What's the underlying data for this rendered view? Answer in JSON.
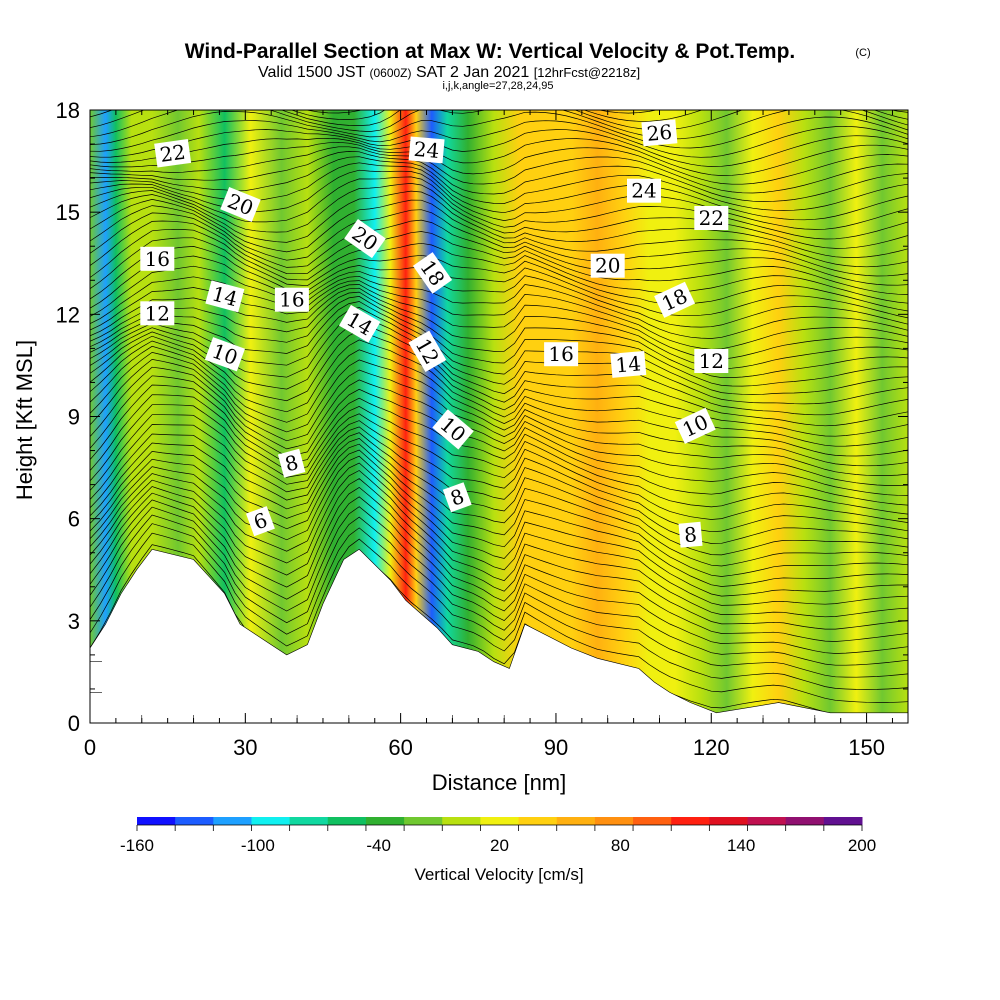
{
  "title": {
    "main": "Wind-Parallel Section at Max W: Vertical Velocity & Pot.Temp.",
    "copyright": "(C)",
    "valid_pre": "Valid 1500 JST",
    "valid_utc": "(0600Z)",
    "valid_date": "SAT 2 Jan 2021",
    "forecast": "[12hrFcst@2218z]",
    "indices": "i,j,k,angle=27,28,24,95"
  },
  "chart_data": {
    "type": "heatmap",
    "xlabel": "Distance [nm]",
    "ylabel": "Height [Kft MSL]",
    "xlim": [
      0,
      158
    ],
    "ylim": [
      0,
      18
    ],
    "x_ticks": [
      "0",
      "30",
      "60",
      "90",
      "120",
      "150"
    ],
    "y_ticks": [
      "0",
      "3",
      "6",
      "9",
      "12",
      "15",
      "18"
    ],
    "colorbar": {
      "label": "Vertical Velocity [cm/s]",
      "tick_labels": [
        "-160",
        "-100",
        "-40",
        "20",
        "80",
        "140",
        "200"
      ],
      "range": [
        -160,
        200
      ],
      "step": 20,
      "colors": [
        "#1010ff",
        "#1c5cff",
        "#1ea0ff",
        "#10f0f0",
        "#10d8a0",
        "#10c060",
        "#30b030",
        "#70c830",
        "#b8e010",
        "#f0f010",
        "#ffd010",
        "#ffb010",
        "#ff9010",
        "#ff6010",
        "#ff2010",
        "#e01020",
        "#c01050",
        "#901070",
        "#601090"
      ]
    },
    "velocity_bands": [
      {
        "x": 0,
        "w": -20
      },
      {
        "x": 3,
        "w": -120
      },
      {
        "x": 5,
        "w": -60
      },
      {
        "x": 8,
        "w": 0
      },
      {
        "x": 12,
        "w": 10
      },
      {
        "x": 17,
        "w": -20
      },
      {
        "x": 21,
        "w": 10
      },
      {
        "x": 26,
        "w": -50
      },
      {
        "x": 31,
        "w": 20
      },
      {
        "x": 37,
        "w": -10
      },
      {
        "x": 42,
        "w": 10
      },
      {
        "x": 47,
        "w": -30
      },
      {
        "x": 51,
        "w": -40
      },
      {
        "x": 55,
        "w": -90
      },
      {
        "x": 58,
        "w": 20
      },
      {
        "x": 61,
        "w": 120
      },
      {
        "x": 63,
        "w": 40
      },
      {
        "x": 66,
        "w": -140
      },
      {
        "x": 69,
        "w": -80
      },
      {
        "x": 73,
        "w": -40
      },
      {
        "x": 78,
        "w": 10
      },
      {
        "x": 83,
        "w": 40
      },
      {
        "x": 88,
        "w": 50
      },
      {
        "x": 93,
        "w": 40
      },
      {
        "x": 98,
        "w": 70
      },
      {
        "x": 103,
        "w": 40
      },
      {
        "x": 108,
        "w": 20
      },
      {
        "x": 113,
        "w": 30
      },
      {
        "x": 118,
        "w": 10
      },
      {
        "x": 123,
        "w": -20
      },
      {
        "x": 128,
        "w": 20
      },
      {
        "x": 133,
        "w": 50
      },
      {
        "x": 138,
        "w": 10
      },
      {
        "x": 143,
        "w": -10
      },
      {
        "x": 148,
        "w": 20
      },
      {
        "x": 153,
        "w": -10
      },
      {
        "x": 158,
        "w": 0
      }
    ],
    "terrain": [
      [
        0,
        2.2
      ],
      [
        0,
        2.2
      ],
      [
        3,
        2.9
      ],
      [
        6,
        3.8
      ],
      [
        9,
        4.5
      ],
      [
        12,
        5.1
      ],
      [
        20,
        4.8
      ],
      [
        23,
        4.3
      ],
      [
        26,
        3.8
      ],
      [
        29,
        2.9
      ],
      [
        32,
        2.6
      ],
      [
        35,
        2.3
      ],
      [
        38,
        2.0
      ],
      [
        42,
        2.3
      ],
      [
        45,
        3.5
      ],
      [
        49,
        4.8
      ],
      [
        52,
        5.1
      ],
      [
        58,
        4.2
      ],
      [
        61,
        3.6
      ],
      [
        64,
        3.2
      ],
      [
        67,
        2.8
      ],
      [
        70,
        2.3
      ],
      [
        75,
        2.1
      ],
      [
        78,
        1.8
      ],
      [
        81,
        1.6
      ],
      [
        84,
        2.9
      ],
      [
        93,
        2.2
      ],
      [
        98,
        1.9
      ],
      [
        106,
        1.6
      ],
      [
        109,
        1.2
      ],
      [
        112,
        0.9
      ],
      [
        116,
        0.6
      ],
      [
        121,
        0.3
      ],
      [
        133,
        0.6
      ],
      [
        143,
        0.3
      ],
      [
        158,
        0.3
      ]
    ],
    "theta_labels": [
      {
        "text": "22",
        "x": 16,
        "y": 16.7,
        "rot": -8
      },
      {
        "text": "20",
        "x": 29,
        "y": 15.2,
        "rot": 22
      },
      {
        "text": "16",
        "x": 13,
        "y": 13.6,
        "rot": 0
      },
      {
        "text": "14",
        "x": 26,
        "y": 12.5,
        "rot": 15
      },
      {
        "text": "16",
        "x": 39,
        "y": 12.4,
        "rot": 0
      },
      {
        "text": "12",
        "x": 13,
        "y": 12.0,
        "rot": 0
      },
      {
        "text": "10",
        "x": 26,
        "y": 10.8,
        "rot": 20
      },
      {
        "text": "20",
        "x": 53,
        "y": 14.2,
        "rot": 35
      },
      {
        "text": "14",
        "x": 52,
        "y": 11.7,
        "rot": 30
      },
      {
        "text": "24",
        "x": 65,
        "y": 16.8,
        "rot": 5
      },
      {
        "text": "18",
        "x": 66,
        "y": 13.2,
        "rot": 55
      },
      {
        "text": "12",
        "x": 65,
        "y": 10.9,
        "rot": 60
      },
      {
        "text": "10",
        "x": 70,
        "y": 8.6,
        "rot": 40
      },
      {
        "text": "8",
        "x": 39,
        "y": 7.6,
        "rot": -15
      },
      {
        "text": "6",
        "x": 33,
        "y": 5.9,
        "rot": -20
      },
      {
        "text": "8",
        "x": 71,
        "y": 6.6,
        "rot": -20
      },
      {
        "text": "26",
        "x": 110,
        "y": 17.3,
        "rot": -5
      },
      {
        "text": "24",
        "x": 107,
        "y": 15.6,
        "rot": 0
      },
      {
        "text": "22",
        "x": 120,
        "y": 14.8,
        "rot": 0
      },
      {
        "text": "20",
        "x": 100,
        "y": 13.4,
        "rot": 0
      },
      {
        "text": "18",
        "x": 113,
        "y": 12.4,
        "rot": -25
      },
      {
        "text": "16",
        "x": 91,
        "y": 10.8,
        "rot": 0
      },
      {
        "text": "14",
        "x": 104,
        "y": 10.5,
        "rot": -5
      },
      {
        "text": "12",
        "x": 120,
        "y": 10.6,
        "rot": 0
      },
      {
        "text": "10",
        "x": 117,
        "y": 8.7,
        "rot": -25
      },
      {
        "text": "8",
        "x": 116,
        "y": 5.5,
        "rot": -5
      }
    ]
  }
}
